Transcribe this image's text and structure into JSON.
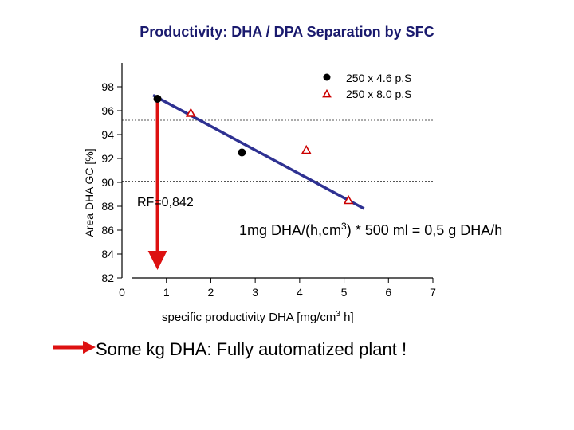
{
  "chart_data": {
    "type": "scatter",
    "title": "Productivity: DHA / DPA Separation  by SFC",
    "xlabel_main": "specific productivity  DHA [mg/cm",
    "xlabel_sup": "3",
    "xlabel_tail": " h]",
    "ylabel": "Area DHA  GC [%]",
    "xlim": [
      0,
      7
    ],
    "ylim": [
      82,
      100
    ],
    "x_ticks": [
      "0",
      "1",
      "2",
      "3",
      "4",
      "5",
      "6",
      "7"
    ],
    "y_ticks": [
      "82",
      "84",
      "86",
      "88",
      "90",
      "92",
      "94",
      "96",
      "98"
    ],
    "series": [
      {
        "name": "250 x 4.6 p.S",
        "marker": "circle",
        "color": "#000000",
        "points": [
          {
            "x": 0.8,
            "y": 97
          },
          {
            "x": 2.7,
            "y": 92.5
          }
        ]
      },
      {
        "name": "250 x 8.0 p.S",
        "marker": "triangle",
        "color": "#cc0000",
        "points": [
          {
            "x": 1.55,
            "y": 95.8
          },
          {
            "x": 4.15,
            "y": 92.7
          },
          {
            "x": 5.1,
            "y": 88.5
          }
        ]
      }
    ],
    "trendline": {
      "x": [
        0.7,
        5.45
      ],
      "y": [
        97.3,
        87.8
      ],
      "color": "#2e3192"
    },
    "reference_lines": [
      {
        "y": 95.2,
        "x_from": 0,
        "x_to": 7
      },
      {
        "y": 90.1,
        "x_from": 0,
        "x_to": 7
      }
    ],
    "arrow": {
      "x_from": 0.8,
      "y_from": 97,
      "x_to": 0.8,
      "y_to": 82.8,
      "color": "#dd1111"
    }
  },
  "annotations": {
    "rf": "RF=0,842",
    "calc_main": "1mg DHA/(h,cm",
    "calc_sup": "3",
    "calc_tail": ") * 500 ml = 0,5 g DHA/h"
  },
  "footer": {
    "note": "Some kg DHA:  Fully automatized plant !",
    "arrow_color": "#dd1111"
  }
}
